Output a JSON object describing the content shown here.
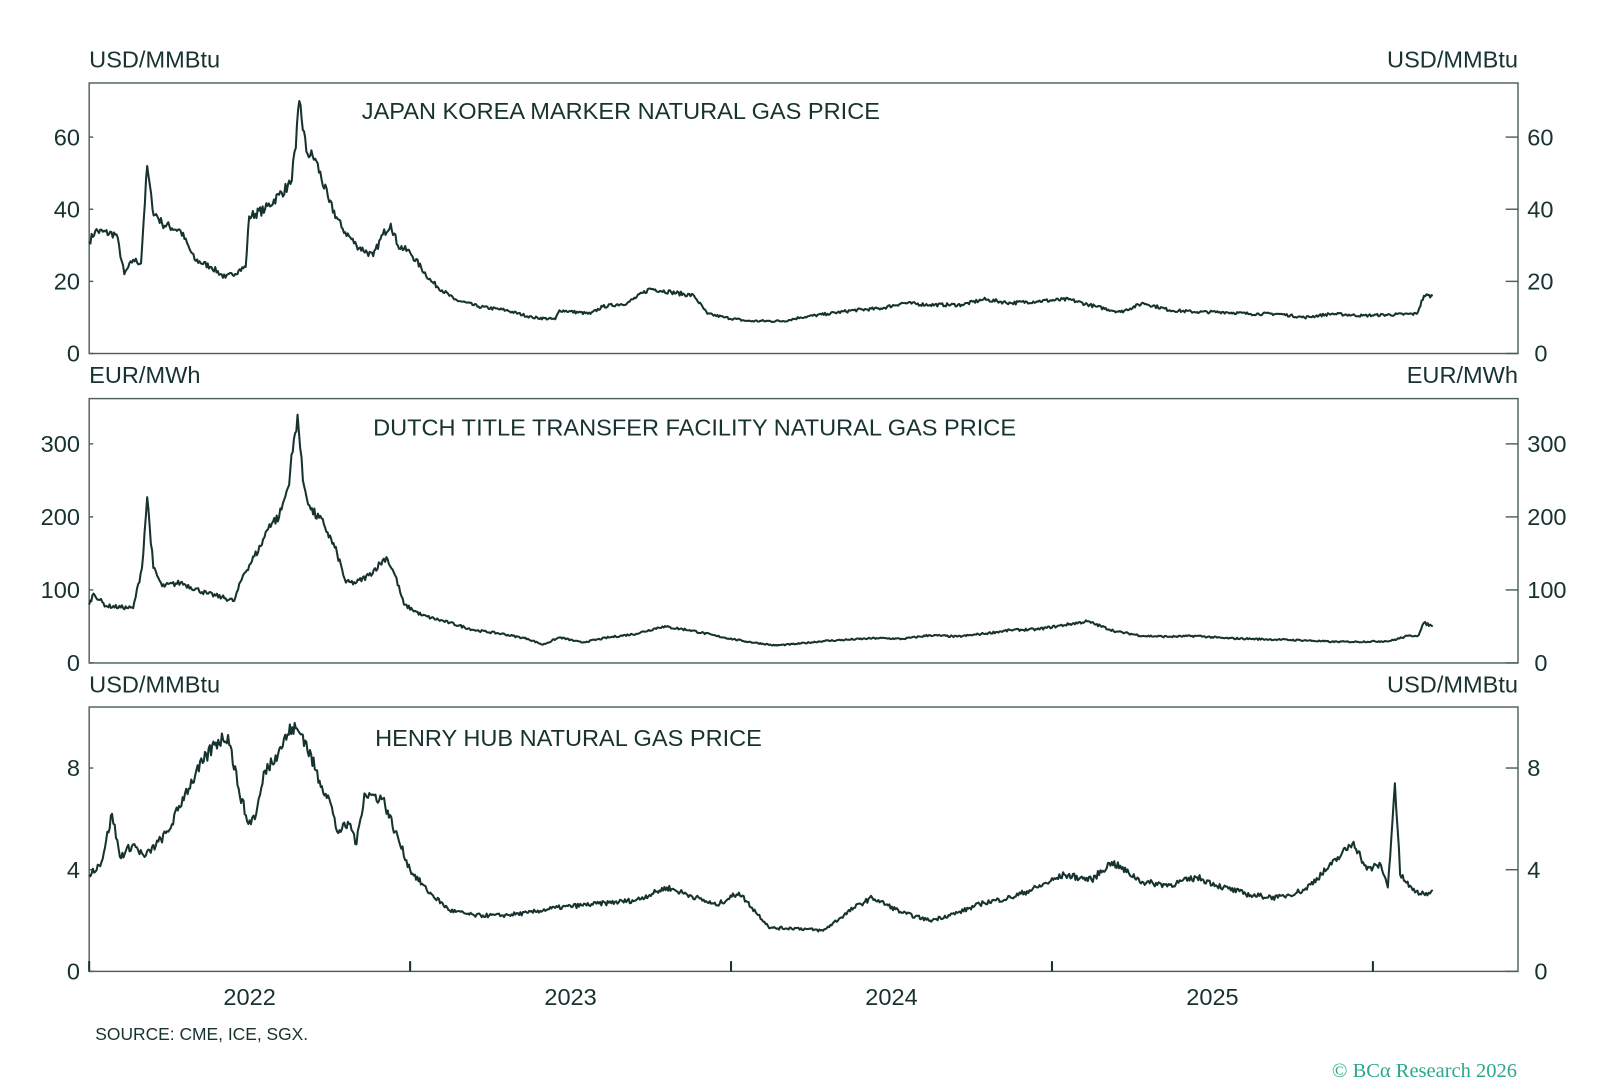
{
  "chart_data": [
    {
      "type": "line",
      "title": "JAPAN KOREA MARKER NATURAL GAS PRICE",
      "ylabel_left": "USD/MMBtu",
      "ylabel_right": "USD/MMBtu",
      "ylim": [
        0,
        75
      ],
      "yticks": [
        0,
        20,
        40,
        60
      ],
      "xlim": [
        "2022-01-01",
        "2026-06-15"
      ],
      "points": [
        [
          "2022-01-01",
          31
        ],
        [
          "2022-01-08",
          34
        ],
        [
          "2022-02-01",
          33
        ],
        [
          "2022-02-10",
          22
        ],
        [
          "2022-02-20",
          26
        ],
        [
          "2022-03-01",
          25
        ],
        [
          "2022-03-04",
          37
        ],
        [
          "2022-03-08",
          52
        ],
        [
          "2022-03-14",
          40
        ],
        [
          "2022-03-25",
          36
        ],
        [
          "2022-04-15",
          34
        ],
        [
          "2022-05-01",
          26
        ],
        [
          "2022-05-20",
          24
        ],
        [
          "2022-06-05",
          21
        ],
        [
          "2022-06-20",
          23
        ],
        [
          "2022-06-28",
          24
        ],
        [
          "2022-07-02",
          38
        ],
        [
          "2022-07-20",
          40
        ],
        [
          "2022-08-05",
          44
        ],
        [
          "2022-08-18",
          47
        ],
        [
          "2022-08-24",
          57
        ],
        [
          "2022-08-28",
          70
        ],
        [
          "2022-09-05",
          56
        ],
        [
          "2022-09-15",
          54
        ],
        [
          "2022-10-01",
          42
        ],
        [
          "2022-10-15",
          35
        ],
        [
          "2022-11-01",
          30
        ],
        [
          "2022-11-20",
          27
        ],
        [
          "2022-12-01",
          33
        ],
        [
          "2022-12-10",
          36
        ],
        [
          "2022-12-18",
          30
        ],
        [
          "2023-01-01",
          28
        ],
        [
          "2023-01-25",
          20
        ],
        [
          "2023-02-20",
          15
        ],
        [
          "2023-03-20",
          13
        ],
        [
          "2023-04-20",
          12
        ],
        [
          "2023-05-20",
          10
        ],
        [
          "2023-06-15",
          9.5
        ],
        [
          "2023-06-20",
          12
        ],
        [
          "2023-07-25",
          11
        ],
        [
          "2023-08-08",
          13
        ],
        [
          "2023-09-05",
          14
        ],
        [
          "2023-10-01",
          18
        ],
        [
          "2023-10-25",
          17
        ],
        [
          "2023-11-20",
          16
        ],
        [
          "2023-12-05",
          11
        ],
        [
          "2023-12-25",
          10
        ],
        [
          "2024-01-20",
          9
        ],
        [
          "2024-03-01",
          9
        ],
        [
          "2024-03-20",
          10
        ],
        [
          "2024-04-20",
          11
        ],
        [
          "2024-05-20",
          12
        ],
        [
          "2024-06-20",
          12.5
        ],
        [
          "2024-07-15",
          14
        ],
        [
          "2024-08-15",
          13.5
        ],
        [
          "2024-09-20",
          13.5
        ],
        [
          "2024-10-15",
          15
        ],
        [
          "2024-11-15",
          14
        ],
        [
          "2024-12-15",
          14.5
        ],
        [
          "2025-01-20",
          15
        ],
        [
          "2025-02-20",
          13
        ],
        [
          "2025-03-20",
          11.5
        ],
        [
          "2025-04-15",
          14
        ],
        [
          "2025-05-15",
          12
        ],
        [
          "2025-06-15",
          11.5
        ],
        [
          "2025-07-15",
          11.5
        ],
        [
          "2025-08-15",
          11
        ],
        [
          "2025-09-15",
          11
        ],
        [
          "2025-10-15",
          10
        ],
        [
          "2025-11-15",
          11
        ],
        [
          "2025-12-20",
          10.5
        ],
        [
          "2026-02-20",
          11
        ],
        [
          "2026-02-28",
          16
        ],
        [
          "2026-03-10",
          16
        ]
      ]
    },
    {
      "type": "line",
      "title": "DUTCH TITLE TRANSFER FACILITY NATURAL GAS PRICE",
      "ylabel_left": "EUR/MWh",
      "ylabel_right": "EUR/MWh",
      "ylim": [
        0,
        362
      ],
      "yticks": [
        0,
        100,
        200,
        300
      ],
      "xlim": [
        "2022-01-01",
        "2026-06-15"
      ],
      "points": [
        [
          "2022-01-01",
          80
        ],
        [
          "2022-01-06",
          95
        ],
        [
          "2022-01-20",
          78
        ],
        [
          "2022-02-20",
          75
        ],
        [
          "2022-03-02",
          130
        ],
        [
          "2022-03-08",
          227
        ],
        [
          "2022-03-15",
          130
        ],
        [
          "2022-03-25",
          105
        ],
        [
          "2022-04-15",
          110
        ],
        [
          "2022-05-15",
          95
        ],
        [
          "2022-06-01",
          90
        ],
        [
          "2022-06-15",
          85
        ],
        [
          "2022-06-25",
          120
        ],
        [
          "2022-07-15",
          160
        ],
        [
          "2022-07-25",
          190
        ],
        [
          "2022-08-05",
          200
        ],
        [
          "2022-08-15",
          240
        ],
        [
          "2022-08-26",
          340
        ],
        [
          "2022-09-01",
          250
        ],
        [
          "2022-09-10",
          210
        ],
        [
          "2022-09-25",
          190
        ],
        [
          "2022-10-10",
          150
        ],
        [
          "2022-10-20",
          110
        ],
        [
          "2022-11-01",
          110
        ],
        [
          "2022-11-15",
          120
        ],
        [
          "2022-12-05",
          145
        ],
        [
          "2022-12-15",
          120
        ],
        [
          "2022-12-25",
          80
        ],
        [
          "2023-01-15",
          65
        ],
        [
          "2023-02-15",
          55
        ],
        [
          "2023-03-15",
          45
        ],
        [
          "2023-04-15",
          40
        ],
        [
          "2023-05-15",
          33
        ],
        [
          "2023-06-01",
          25
        ],
        [
          "2023-06-20",
          35
        ],
        [
          "2023-07-15",
          28
        ],
        [
          "2023-08-15",
          35
        ],
        [
          "2023-09-15",
          40
        ],
        [
          "2023-10-15",
          50
        ],
        [
          "2023-11-15",
          45
        ],
        [
          "2023-12-15",
          37
        ],
        [
          "2024-01-15",
          30
        ],
        [
          "2024-02-20",
          24
        ],
        [
          "2024-03-15",
          26
        ],
        [
          "2024-04-15",
          30
        ],
        [
          "2024-05-15",
          32
        ],
        [
          "2024-06-15",
          34
        ],
        [
          "2024-07-15",
          33
        ],
        [
          "2024-08-15",
          38
        ],
        [
          "2024-09-15",
          36
        ],
        [
          "2024-10-15",
          40
        ],
        [
          "2024-11-15",
          45
        ],
        [
          "2024-12-15",
          46
        ],
        [
          "2025-02-10",
          57
        ],
        [
          "2025-03-15",
          43
        ],
        [
          "2025-04-15",
          37
        ],
        [
          "2025-05-15",
          36
        ],
        [
          "2025-06-15",
          37
        ],
        [
          "2025-07-15",
          34
        ],
        [
          "2025-08-15",
          33
        ],
        [
          "2025-09-15",
          32
        ],
        [
          "2025-10-15",
          31
        ],
        [
          "2025-11-15",
          29
        ],
        [
          "2025-12-15",
          29
        ],
        [
          "2026-01-20",
          30
        ],
        [
          "2026-02-10",
          37
        ],
        [
          "2026-02-22",
          38
        ],
        [
          "2026-02-28",
          55
        ],
        [
          "2026-03-10",
          50
        ]
      ]
    },
    {
      "type": "line",
      "title": "HENRY HUB NATURAL GAS PRICE",
      "ylabel_left": "USD/MMBtu",
      "ylabel_right": "USD/MMBtu",
      "ylim": [
        0,
        10.4
      ],
      "yticks": [
        0,
        4,
        8
      ],
      "xlim": [
        "2022-01-01",
        "2026-06-15"
      ],
      "xticks": [
        "2022",
        "2023",
        "2024",
        "2025"
      ],
      "points": [
        [
          "2022-01-01",
          3.8
        ],
        [
          "2022-01-15",
          4.3
        ],
        [
          "2022-01-27",
          6.2
        ],
        [
          "2022-02-05",
          4.5
        ],
        [
          "2022-02-20",
          5
        ],
        [
          "2022-03-05",
          4.5
        ],
        [
          "2022-04-01",
          5.5
        ],
        [
          "2022-04-20",
          7
        ],
        [
          "2022-05-10",
          8.2
        ],
        [
          "2022-05-25",
          9.0
        ],
        [
          "2022-06-08",
          9.3
        ],
        [
          "2022-06-20",
          7.2
        ],
        [
          "2022-07-01",
          5.8
        ],
        [
          "2022-07-10",
          6.2
        ],
        [
          "2022-07-20",
          7.9
        ],
        [
          "2022-08-01",
          8.5
        ],
        [
          "2022-08-20",
          9.6
        ],
        [
          "2022-09-01",
          9.3
        ],
        [
          "2022-09-20",
          7.5
        ],
        [
          "2022-10-01",
          6.8
        ],
        [
          "2022-10-10",
          5.5
        ],
        [
          "2022-10-25",
          5.8
        ],
        [
          "2022-11-01",
          5.0
        ],
        [
          "2022-11-10",
          7.0
        ],
        [
          "2022-12-01",
          6.8
        ],
        [
          "2022-12-15",
          5.5
        ],
        [
          "2023-01-01",
          4.0
        ],
        [
          "2023-01-20",
          3.2
        ],
        [
          "2023-02-15",
          2.4
        ],
        [
          "2023-03-15",
          2.2
        ],
        [
          "2023-04-15",
          2.2
        ],
        [
          "2023-05-15",
          2.3
        ],
        [
          "2023-06-15",
          2.5
        ],
        [
          "2023-07-15",
          2.6
        ],
        [
          "2023-08-15",
          2.7
        ],
        [
          "2023-09-15",
          2.8
        ],
        [
          "2023-10-20",
          3.3
        ],
        [
          "2023-11-15",
          3.0
        ],
        [
          "2023-12-15",
          2.6
        ],
        [
          "2024-01-10",
          3.1
        ],
        [
          "2024-01-25",
          2.5
        ],
        [
          "2024-02-15",
          1.7
        ],
        [
          "2024-03-15",
          1.7
        ],
        [
          "2024-04-15",
          1.6
        ],
        [
          "2024-05-20",
          2.5
        ],
        [
          "2024-06-10",
          2.9
        ],
        [
          "2024-07-15",
          2.3
        ],
        [
          "2024-08-15",
          2.0
        ],
        [
          "2024-09-15",
          2.3
        ],
        [
          "2024-10-15",
          2.7
        ],
        [
          "2024-11-15",
          2.9
        ],
        [
          "2024-12-15",
          3.3
        ],
        [
          "2025-01-15",
          3.8
        ],
        [
          "2025-02-15",
          3.6
        ],
        [
          "2025-03-10",
          4.3
        ],
        [
          "2025-04-15",
          3.5
        ],
        [
          "2025-05-15",
          3.4
        ],
        [
          "2025-06-15",
          3.7
        ],
        [
          "2025-07-15",
          3.3
        ],
        [
          "2025-08-15",
          3.0
        ],
        [
          "2025-09-15",
          2.9
        ],
        [
          "2025-10-15",
          3.2
        ],
        [
          "2025-11-15",
          4.2
        ],
        [
          "2025-12-10",
          5.1
        ],
        [
          "2025-12-25",
          4.0
        ],
        [
          "2026-01-10",
          4.2
        ],
        [
          "2026-01-18",
          3.3
        ],
        [
          "2026-01-26",
          7.4
        ],
        [
          "2026-02-01",
          3.8
        ],
        [
          "2026-02-15",
          3.2
        ],
        [
          "2026-03-01",
          3.0
        ],
        [
          "2026-03-10",
          3.2
        ]
      ]
    }
  ],
  "footer": {
    "source": "SOURCE: CME, ICE, SGX.",
    "brand": "© BCα Research 2026"
  },
  "colors": {
    "line": "#17332f",
    "frame": "#4d5f5c",
    "brand": "#2aa88a"
  }
}
